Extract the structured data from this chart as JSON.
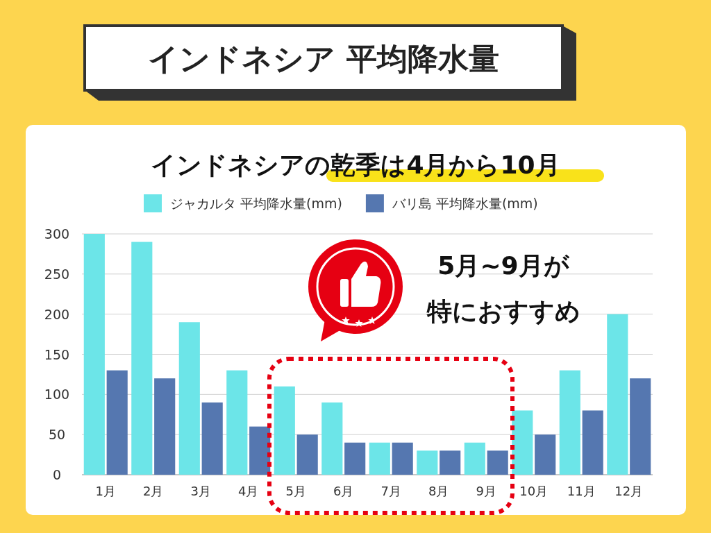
{
  "chart_data": {
    "type": "bar",
    "title": "インドネシア 平均降水量",
    "subtitle": "インドネシアの乾季は4月から10月",
    "categories": [
      "1月",
      "2月",
      "3月",
      "4月",
      "5月",
      "6月",
      "7月",
      "8月",
      "9月",
      "10月",
      "11月",
      "12月"
    ],
    "series": [
      {
        "name": "ジャカルタ 平均降水量(mm)",
        "color": "#6ce5e8",
        "values": [
          300,
          290,
          190,
          130,
          110,
          90,
          40,
          30,
          40,
          80,
          130,
          200
        ]
      },
      {
        "name": "バリ島 平均降水量(mm)",
        "color": "#5577b0",
        "values": [
          130,
          120,
          90,
          60,
          50,
          40,
          40,
          30,
          30,
          50,
          80,
          120
        ]
      }
    ],
    "ylim": [
      0,
      300
    ],
    "yticks": [
      0,
      50,
      100,
      150,
      200,
      250,
      300
    ],
    "grid": "y",
    "legend": "top",
    "annotations": [
      "5月~9月が",
      "特におすすめ"
    ]
  }
}
